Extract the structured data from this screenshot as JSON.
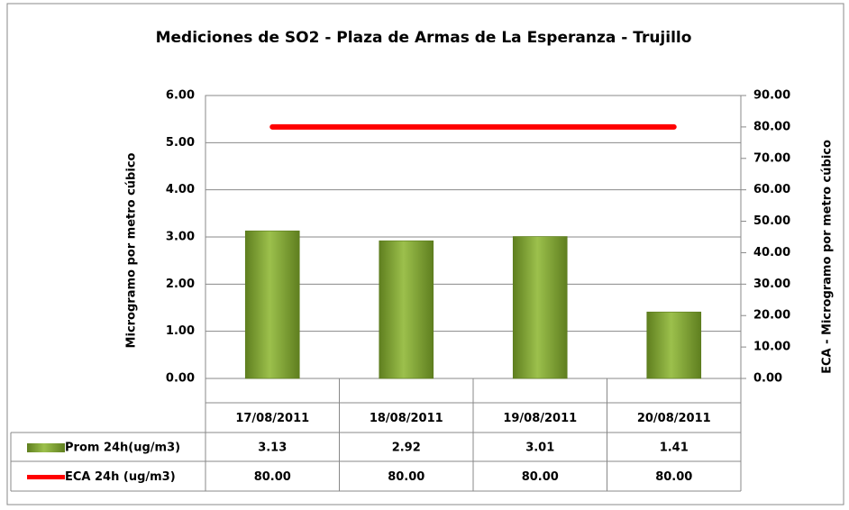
{
  "chart_data": {
    "type": "bar",
    "title": "Mediciones de SO2 - Plaza de Armas de La Esperanza - Trujillo",
    "y_label": "Microgramo  por metro cúbico",
    "y2_label": "ECA - Microgramo  por metro cúbico",
    "categories": [
      "17/08/2011",
      "18/08/2011",
      "19/08/2011",
      "20/08/2011"
    ],
    "series": [
      {
        "name": "Prom 24h(ug/m3)",
        "type": "bar",
        "color": "#8aaa3a",
        "values": [
          3.13,
          2.92,
          3.01,
          1.41
        ]
      },
      {
        "name": "ECA 24h (ug/m3)",
        "type": "line",
        "axis": "y2",
        "color": "#ff0000",
        "values": [
          80,
          80,
          80,
          80
        ],
        "value_labels": [
          "80.00",
          "80.00",
          "80.00",
          "80.00"
        ]
      }
    ],
    "ylim": [
      0,
      6
    ],
    "yticks": [
      {
        "value": 0,
        "label": "0.00"
      },
      {
        "value": 1,
        "label": "1.00"
      },
      {
        "value": 2,
        "label": "2.00"
      },
      {
        "value": 3,
        "label": "3.00"
      },
      {
        "value": 4,
        "label": "4.00"
      },
      {
        "value": 5,
        "label": "5.00"
      },
      {
        "value": 6,
        "label": "6.00"
      }
    ],
    "y2lim": [
      0,
      90
    ],
    "y2ticks": [
      {
        "value": 0,
        "label": "0.00"
      },
      {
        "value": 10,
        "label": "10.00"
      },
      {
        "value": 20,
        "label": "20.00"
      },
      {
        "value": 30,
        "label": "30.00"
      },
      {
        "value": 40,
        "label": "40.00"
      },
      {
        "value": 50,
        "label": "50.00"
      },
      {
        "value": 60,
        "label": "60.00"
      },
      {
        "value": 70,
        "label": "70.00"
      },
      {
        "value": 80,
        "label": "80.00"
      },
      {
        "value": 90,
        "label": "90.00"
      }
    ],
    "grid": true
  }
}
